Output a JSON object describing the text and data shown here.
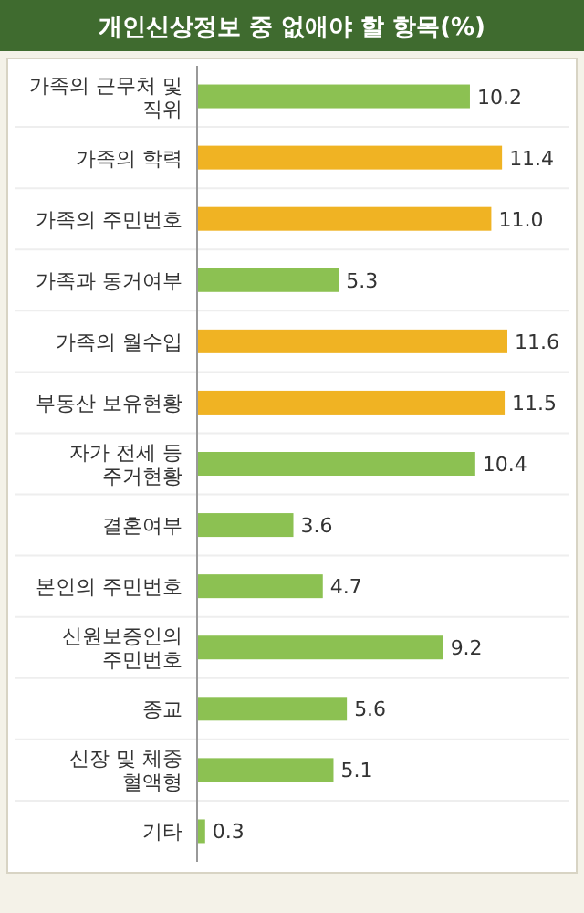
{
  "chart_data": {
    "type": "bar",
    "orientation": "horizontal",
    "title": "개인신상정보 중 없애야 할 항목(%)",
    "categories": [
      "가족의 근무처 및 직위",
      "가족의 학력",
      "가족의 주민번호",
      "가족과 동거여부",
      "가족의 월수입",
      "부동산 보유현황",
      "자가 전세 등 주거현황",
      "결혼여부",
      "본인의 주민번호",
      "신원보증인의 주민번호",
      "종교",
      "신장 및 체중 혈액형",
      "기타"
    ],
    "values": [
      10.2,
      11.4,
      11.0,
      5.3,
      11.6,
      11.5,
      10.4,
      3.6,
      4.7,
      9.2,
      5.6,
      5.1,
      0.3
    ],
    "value_labels": [
      "10.2",
      "11.4",
      "11.0",
      "5.3",
      "11.6",
      "11.5",
      "10.4",
      "3.6",
      "4.7",
      "9.2",
      "5.6",
      "5.1",
      "0.3"
    ],
    "colors": [
      "#8cc152",
      "#f0b323",
      "#f0b323",
      "#8cc152",
      "#f0b323",
      "#f0b323",
      "#8cc152",
      "#8cc152",
      "#8cc152",
      "#8cc152",
      "#8cc152",
      "#8cc152",
      "#8cc152"
    ]
  }
}
